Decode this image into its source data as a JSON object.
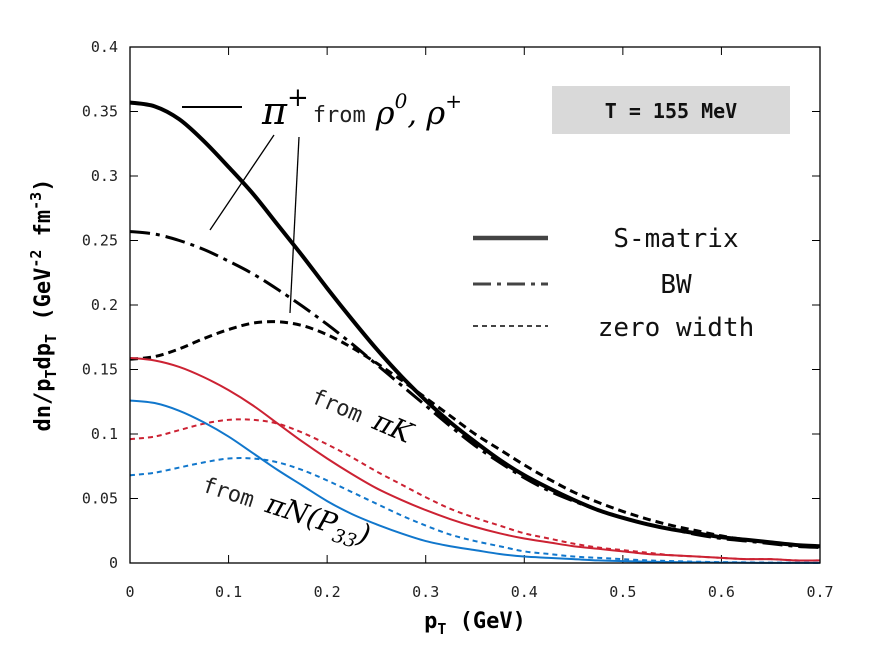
{
  "chart_data": {
    "type": "line",
    "xlabel": "p",
    "xlabel_sub": "T",
    "xlabel_unit": " (GeV)",
    "ylabel_main": "dn/p",
    "ylabel_sub1": "T",
    "ylabel_mid": "dp",
    "ylabel_sub2": "T",
    "ylabel_unit_a": "  (GeV",
    "ylabel_sup1": "-2",
    "ylabel_unit_b": " fm",
    "ylabel_sup2": "-3",
    "ylabel_unit_c": ")",
    "xlim": [
      0,
      0.7
    ],
    "ylim": [
      0,
      0.4
    ],
    "x_ticks": [
      "0",
      "0.1",
      "0.2",
      "0.3",
      "0.4",
      "0.5",
      "0.6",
      "0.7"
    ],
    "y_ticks": [
      "0",
      "0.05",
      "0.1",
      "0.15",
      "0.2",
      "0.25",
      "0.3",
      "0.35",
      "0.4"
    ],
    "temperature_badge": "T = 155 MeV",
    "legend": [
      {
        "label": "S-matrix",
        "style": "solid"
      },
      {
        "label": "BW",
        "style": "dashdot"
      },
      {
        "label": "zero width",
        "style": "dotted"
      }
    ],
    "annotations": {
      "rho": {
        "pi": "π",
        "plus": "+",
        "from": "from",
        "rho0": "ρ",
        "rho0_sup": "0",
        "sep": ", ",
        "rhop": "ρ",
        "rhop_sup": "+"
      },
      "piK": {
        "from": "from ",
        "text": "πK"
      },
      "piN": {
        "from": "from ",
        "text": "πN(P",
        "sub": "33",
        "close": ")"
      }
    },
    "colors": {
      "rho": "#000000",
      "piK": "#cc2233",
      "piN": "#1177cc"
    },
    "x": [
      0,
      0.025,
      0.05,
      0.075,
      0.1,
      0.125,
      0.15,
      0.175,
      0.2,
      0.225,
      0.25,
      0.275,
      0.3,
      0.325,
      0.35,
      0.375,
      0.4,
      0.425,
      0.45,
      0.475,
      0.5,
      0.525,
      0.55,
      0.575,
      0.6,
      0.625,
      0.65,
      0.675,
      0.7
    ],
    "series": [
      {
        "name": "rho S-matrix",
        "group": "rho",
        "style": "solid",
        "values": [
          0.357,
          0.354,
          0.344,
          0.327,
          0.307,
          0.286,
          0.262,
          0.238,
          0.213,
          0.189,
          0.166,
          0.145,
          0.126,
          0.109,
          0.094,
          0.08,
          0.068,
          0.058,
          0.049,
          0.041,
          0.035,
          0.03,
          0.026,
          0.023,
          0.02,
          0.018,
          0.016,
          0.014,
          0.013
        ]
      },
      {
        "name": "rho BW",
        "group": "rho",
        "style": "dashdot",
        "values": [
          0.257,
          0.255,
          0.25,
          0.243,
          0.234,
          0.224,
          0.212,
          0.199,
          0.185,
          0.17,
          0.154,
          0.138,
          0.122,
          0.106,
          0.091,
          0.078,
          0.066,
          0.056,
          0.048,
          0.041,
          0.035,
          0.03,
          0.026,
          0.022,
          0.019,
          0.017,
          0.015,
          0.013,
          0.012
        ]
      },
      {
        "name": "rho zero width",
        "group": "rho",
        "style": "dotted",
        "values": [
          0.158,
          0.16,
          0.166,
          0.174,
          0.181,
          0.186,
          0.187,
          0.184,
          0.177,
          0.167,
          0.155,
          0.142,
          0.128,
          0.114,
          0.1,
          0.088,
          0.076,
          0.065,
          0.055,
          0.047,
          0.04,
          0.034,
          0.029,
          0.025,
          0.021,
          0.018,
          0.016,
          0.014,
          0.013
        ]
      },
      {
        "name": "piK S-matrix",
        "group": "piK",
        "style": "solid",
        "values": [
          0.159,
          0.157,
          0.152,
          0.144,
          0.134,
          0.122,
          0.108,
          0.094,
          0.081,
          0.069,
          0.058,
          0.049,
          0.041,
          0.034,
          0.028,
          0.023,
          0.019,
          0.016,
          0.013,
          0.011,
          0.009,
          0.007,
          0.006,
          0.005,
          0.004,
          0.003,
          0.003,
          0.002,
          0.002
        ]
      },
      {
        "name": "piK zero width",
        "group": "piK",
        "style": "dotted",
        "values": [
          0.096,
          0.098,
          0.103,
          0.108,
          0.111,
          0.111,
          0.108,
          0.101,
          0.092,
          0.082,
          0.071,
          0.061,
          0.051,
          0.042,
          0.035,
          0.029,
          0.023,
          0.019,
          0.015,
          0.012,
          0.01,
          0.008,
          0.006,
          0.005,
          0.004,
          0.003,
          0.003,
          0.002,
          0.002
        ]
      },
      {
        "name": "piN S-matrix",
        "group": "piN",
        "style": "solid",
        "values": [
          0.126,
          0.124,
          0.118,
          0.109,
          0.098,
          0.085,
          0.072,
          0.06,
          0.048,
          0.038,
          0.03,
          0.023,
          0.017,
          0.013,
          0.01,
          0.007,
          0.005,
          0.004,
          0.003,
          0.002,
          0.0015,
          0.001,
          0.0007,
          0.0005,
          0.0003,
          0.0002,
          0.0001,
          0.0001,
          0.0001
        ]
      },
      {
        "name": "piN zero width",
        "group": "piN",
        "style": "dotted",
        "values": [
          0.068,
          0.07,
          0.074,
          0.078,
          0.081,
          0.081,
          0.078,
          0.072,
          0.064,
          0.055,
          0.046,
          0.037,
          0.029,
          0.022,
          0.017,
          0.013,
          0.009,
          0.007,
          0.005,
          0.004,
          0.003,
          0.002,
          0.0015,
          0.001,
          0.0007,
          0.0005,
          0.0003,
          0.0002,
          0.0001
        ]
      }
    ]
  }
}
